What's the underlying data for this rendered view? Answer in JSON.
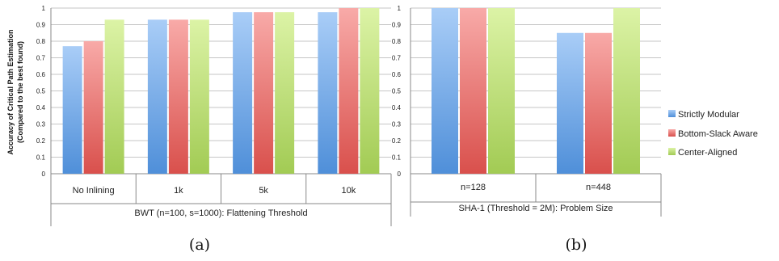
{
  "colors": {
    "strictly_modular": [
      "#a9cdf7",
      "#4f8fd9"
    ],
    "bottom_slack_aware": [
      "#f8aaa8",
      "#d9504c"
    ],
    "center_aligned": [
      "#dcf3a6",
      "#a2cb54"
    ],
    "grid": "#b3b3b3",
    "axis": "#888888"
  },
  "legend": [
    "Strictly Modular",
    "Bottom-Slack Aware",
    "Center-Aligned"
  ],
  "ylabel": [
    "Accuracy of Critical Path Estimation",
    "(Compared to the best found)"
  ],
  "subfigure_labels": [
    "(a)",
    "(b)"
  ],
  "chart_data": [
    {
      "type": "bar",
      "categories": [
        "No Inlining",
        "1k",
        "5k",
        "10k"
      ],
      "xlabel": "BWT (n=100, s=1000): Flattening Threshold",
      "ylim": [
        0,
        1
      ],
      "yticks": [
        "0",
        "0.1",
        "0.2",
        "0.3",
        "0.4",
        "0.5",
        "0.6",
        "0.7",
        "0.8",
        "0.9",
        "1"
      ],
      "grid": true,
      "series": [
        {
          "name": "Strictly Modular",
          "values": [
            0.77,
            0.93,
            0.975,
            0.975
          ]
        },
        {
          "name": "Bottom-Slack Aware",
          "values": [
            0.8,
            0.93,
            0.975,
            1.0
          ]
        },
        {
          "name": "Center-Aligned",
          "values": [
            0.93,
            0.93,
            0.975,
            1.0
          ]
        }
      ]
    },
    {
      "type": "bar",
      "categories": [
        "n=128",
        "n=448"
      ],
      "xlabel": "SHA-1 (Threshold = 2M): Problem Size",
      "ylim": [
        0,
        1
      ],
      "yticks": [
        "0",
        "0.1",
        "0.2",
        "0.3",
        "0.4",
        "0.5",
        "0.6",
        "0.7",
        "0.8",
        "0.9",
        "1"
      ],
      "grid": true,
      "legend_position": "right",
      "series": [
        {
          "name": "Strictly Modular",
          "values": [
            1.0,
            0.85
          ]
        },
        {
          "name": "Bottom-Slack Aware",
          "values": [
            1.0,
            0.85
          ]
        },
        {
          "name": "Center-Aligned",
          "values": [
            1.0,
            1.0
          ]
        }
      ]
    }
  ]
}
